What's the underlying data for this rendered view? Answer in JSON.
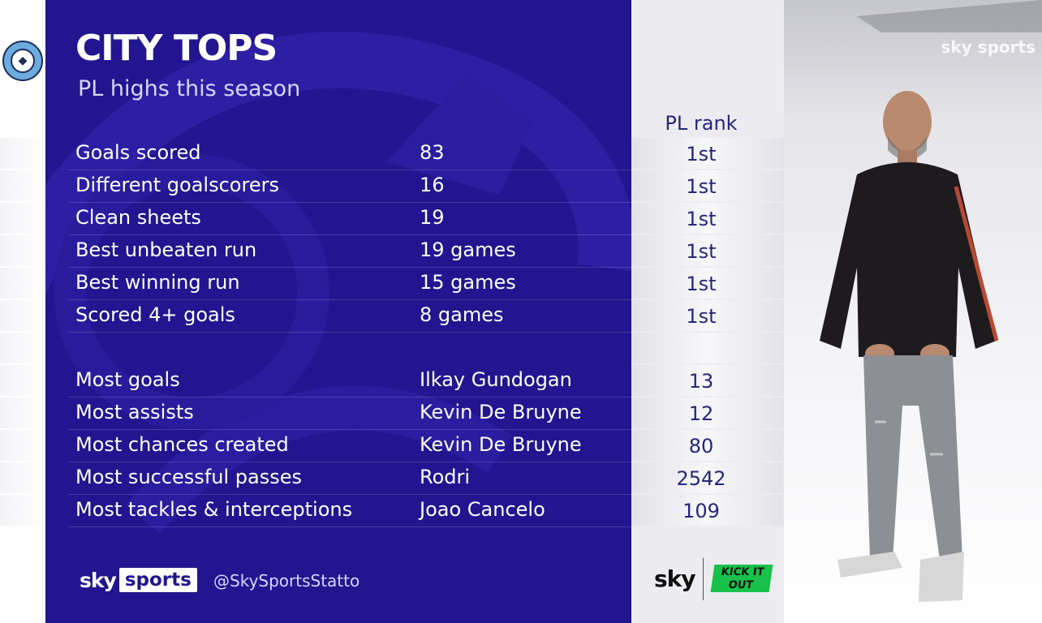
{
  "header": {
    "title": "CITY TOPS",
    "subtitle": "PL highs this season",
    "rank_column_label": "PL rank"
  },
  "team_stats": [
    {
      "label": "Goals scored",
      "value": "83",
      "rank": "1st"
    },
    {
      "label": "Different goalscorers",
      "value": "16",
      "rank": "1st"
    },
    {
      "label": "Clean sheets",
      "value": "19",
      "rank": "1st"
    },
    {
      "label": "Best unbeaten run",
      "value": "19 games",
      "rank": "1st"
    },
    {
      "label": "Best winning run",
      "value": "15 games",
      "rank": "1st"
    },
    {
      "label": "Scored 4+ goals",
      "value": "8 games",
      "rank": "1st"
    }
  ],
  "player_stats": [
    {
      "label": "Most goals",
      "player": "Ilkay Gundogan",
      "value": "13"
    },
    {
      "label": "Most assists",
      "player": "Kevin De Bruyne",
      "value": "12"
    },
    {
      "label": "Most chances created",
      "player": "Kevin De Bruyne",
      "value": "80"
    },
    {
      "label": "Most successful passes",
      "player": "Rodri",
      "value": "2542"
    },
    {
      "label": "Most tackles & interceptions",
      "player": "Joao Cancelo",
      "value": "109"
    }
  ],
  "footer": {
    "brand_sky": "sky",
    "brand_sports": "sports",
    "handle": "@SkySportsStatto",
    "partner_sky": "sky",
    "partner_kickitout": "KICK IT OUT"
  },
  "photo_overlay": {
    "text": "sky sports"
  },
  "colors": {
    "panel_blue": "#22158f",
    "rank_text": "#26267a",
    "kick_it_out_green": "#17c14a",
    "city_sky_blue": "#6cabdd"
  },
  "icons": [
    "manchester-city-crest-icon",
    "premier-league-lion-watermark-icon"
  ]
}
